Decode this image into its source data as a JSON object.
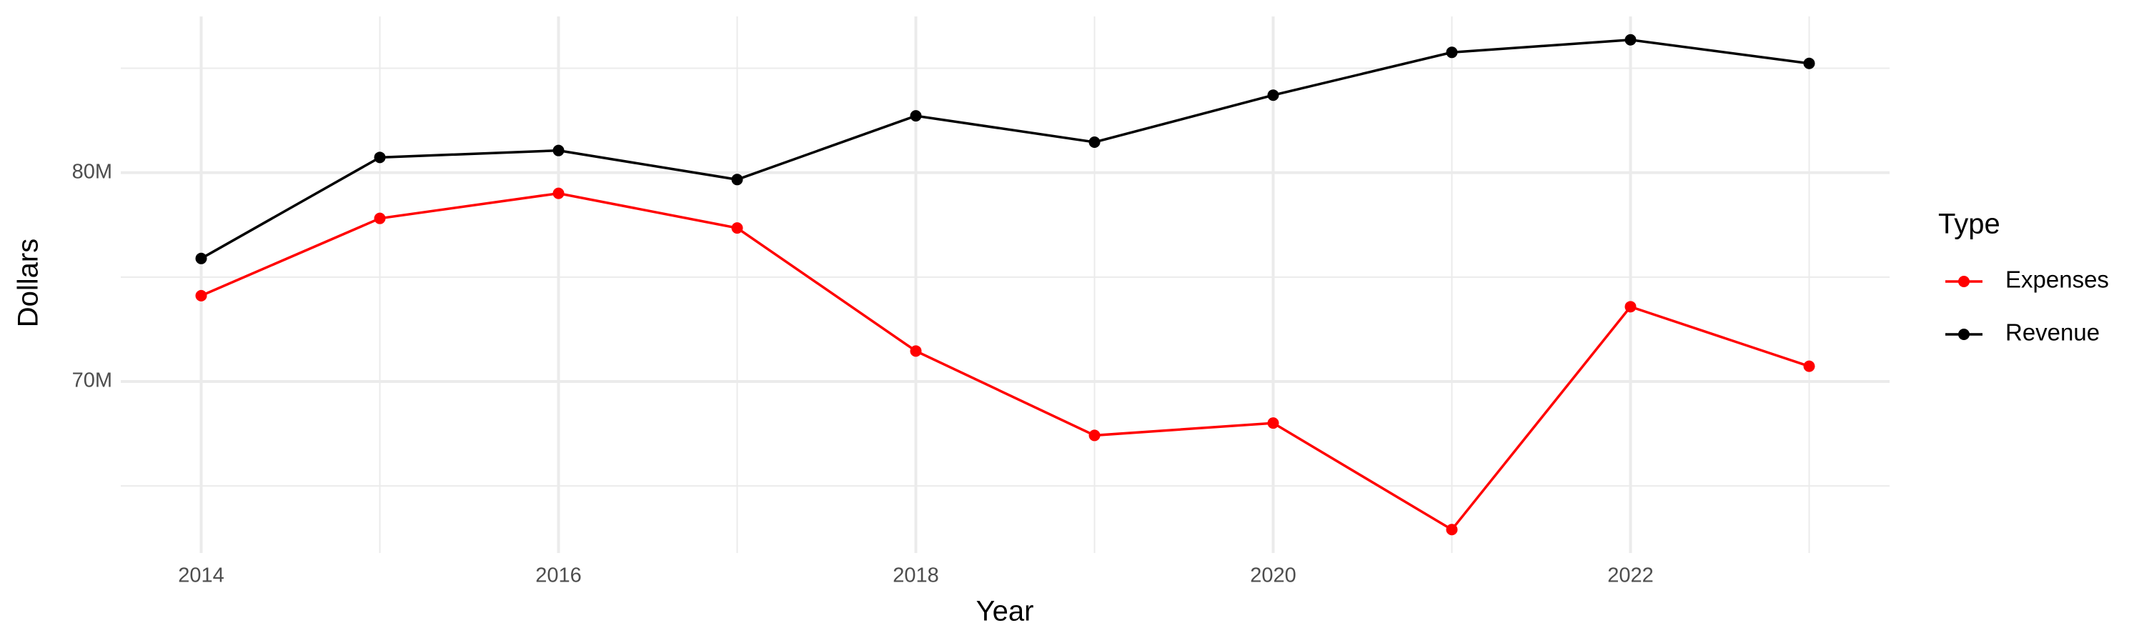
{
  "chart_data": {
    "type": "line",
    "x_label": "Year",
    "y_label": "Dollars",
    "legend_title": "Type",
    "legend": "right",
    "grid": true,
    "x": [
      2014,
      2015,
      2016,
      2017,
      2018,
      2019,
      2020,
      2021,
      2022,
      2023
    ],
    "series": [
      {
        "name": "Expenses",
        "color": "#ff0000",
        "values": [
          74110000,
          77810000,
          79010000,
          77350000,
          71460000,
          67420000,
          68010000,
          62910000,
          73580000,
          70730000
        ]
      },
      {
        "name": "Revenue",
        "color": "#000000",
        "values": [
          75890000,
          80730000,
          81060000,
          79670000,
          82720000,
          81460000,
          83710000,
          85760000,
          86360000,
          85230000
        ]
      }
    ],
    "xlim": [
      2013.55,
      2023.45
    ],
    "xticks": [
      2014,
      2016,
      2018,
      2020,
      2022
    ],
    "ylim": [
      61790000,
      87480000
    ],
    "yticks": [
      {
        "value": 70000000,
        "label": "70M"
      },
      {
        "value": 80000000,
        "label": "80M"
      }
    ]
  }
}
